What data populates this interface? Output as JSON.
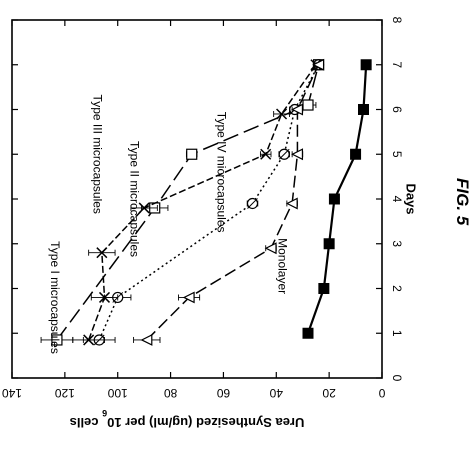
{
  "figure_label": "FIG. 5",
  "chart_data": {
    "type": "line",
    "title": "",
    "xlabel": "Days",
    "ylabel": "Urea Synthesized (ug/ml) per 10 6 cells",
    "ylabel_main": "Urea Synthesized (ug/ml) per 10",
    "ylabel_exponent": "6",
    "ylabel_suffix": "cells",
    "xlim": [
      0,
      8
    ],
    "ylim": [
      0,
      140
    ],
    "x_ticks": [
      "0",
      "1",
      "2",
      "3",
      "4",
      "5",
      "6",
      "7",
      "8"
    ],
    "y_ticks": [
      "0",
      "20",
      "40",
      "60",
      "80",
      "100",
      "120",
      "140"
    ],
    "grid": false,
    "legend": "none",
    "series": [
      {
        "name": "Type I microcapsules",
        "marker": "square-open",
        "dash": "16,6",
        "label_pos": [
          1.8,
          124
        ],
        "points": [
          {
            "x": 0.85,
            "y": 123,
            "err": 6
          },
          {
            "x": 3.8,
            "y": 86,
            "err": 5
          },
          {
            "x": 5.0,
            "y": 72,
            "err": 2
          },
          {
            "x": 6.1,
            "y": 28,
            "err": 3
          },
          {
            "x": 7.0,
            "y": 24,
            "err": 1
          }
        ]
      },
      {
        "name": "Type II microcapsules",
        "marker": "circle-slash",
        "dash": "2,3",
        "label_pos": [
          4.0,
          94
        ],
        "points": [
          {
            "x": 0.85,
            "y": 107,
            "err": 6
          },
          {
            "x": 1.8,
            "y": 100,
            "err": 5
          },
          {
            "x": 3.9,
            "y": 49,
            "err": 2
          },
          {
            "x": 5.0,
            "y": 37,
            "err": 2
          },
          {
            "x": 6.0,
            "y": 33,
            "err": 2
          },
          {
            "x": 7.0,
            "y": 24,
            "err": 1
          }
        ]
      },
      {
        "name": "Type III microcapsules",
        "marker": "x",
        "dash": "7,3",
        "label_pos": [
          5.0,
          108
        ],
        "points": [
          {
            "x": 0.85,
            "y": 111,
            "err": 6
          },
          {
            "x": 1.8,
            "y": 105,
            "err": 5
          },
          {
            "x": 2.8,
            "y": 106,
            "err": 5
          },
          {
            "x": 3.8,
            "y": 90,
            "err": 5
          },
          {
            "x": 5.0,
            "y": 44,
            "err": 2
          },
          {
            "x": 5.9,
            "y": 38,
            "err": 3
          },
          {
            "x": 7.0,
            "y": 25,
            "err": 1
          }
        ]
      },
      {
        "name": "Type IV microcapsules",
        "marker": "triangle-open",
        "dash": "12,5",
        "label_pos": [
          4.6,
          61
        ],
        "points": [
          {
            "x": 0.85,
            "y": 89,
            "err": 5
          },
          {
            "x": 1.8,
            "y": 73,
            "err": 4
          },
          {
            "x": 2.9,
            "y": 42,
            "err": 2
          },
          {
            "x": 3.9,
            "y": 34,
            "err": 2
          },
          {
            "x": 5.0,
            "y": 32,
            "err": 2
          },
          {
            "x": 6.0,
            "y": 32,
            "err": 2
          },
          {
            "x": 7.0,
            "y": 24,
            "err": 1
          }
        ]
      },
      {
        "name": "Monolayer",
        "marker": "square-filled",
        "dash": "",
        "label_pos": [
          2.5,
          38
        ],
        "points": [
          {
            "x": 1.0,
            "y": 28
          },
          {
            "x": 2.0,
            "y": 22
          },
          {
            "x": 3.0,
            "y": 20
          },
          {
            "x": 4.0,
            "y": 18
          },
          {
            "x": 5.0,
            "y": 10
          },
          {
            "x": 6.0,
            "y": 7
          },
          {
            "x": 7.0,
            "y": 6
          }
        ]
      }
    ]
  }
}
